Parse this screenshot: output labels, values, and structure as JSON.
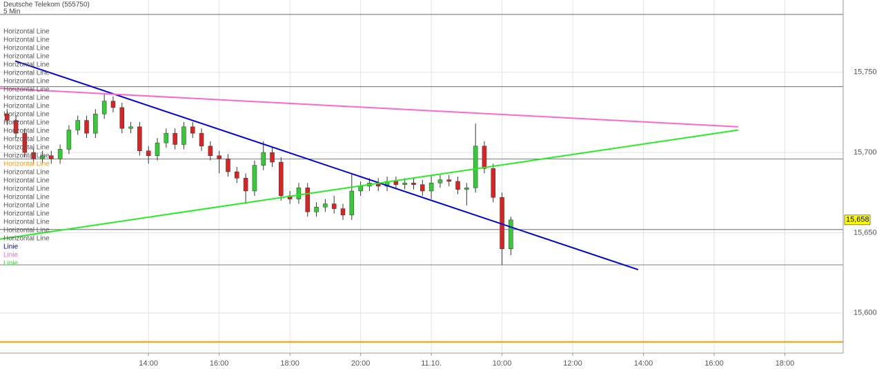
{
  "chart_data": {
    "type": "candlestick",
    "title": "Deutsche Telekom (555750)",
    "subtitle": "5 Min",
    "xlim": [
      9.8,
      33.65
    ],
    "xticks": [
      {
        "value": 14,
        "label": "14:00"
      },
      {
        "value": 16,
        "label": "16:00"
      },
      {
        "value": 18,
        "label": "18:00"
      },
      {
        "value": 20,
        "label": "20:00"
      },
      {
        "value": 22,
        "label": "11.10."
      },
      {
        "value": 24,
        "label": "10:00"
      },
      {
        "value": 26,
        "label": "12:00"
      },
      {
        "value": 28,
        "label": "14:00"
      },
      {
        "value": 30,
        "label": "16:00"
      },
      {
        "value": 32,
        "label": "18:00"
      }
    ],
    "ylim": [
      15575,
      15795
    ],
    "yticks": [
      {
        "value": 15600,
        "label": "15,600"
      },
      {
        "value": 15650,
        "label": "15,650"
      },
      {
        "value": 15700,
        "label": "15,700"
      },
      {
        "value": 15750,
        "label": "15,750"
      }
    ],
    "grid": true,
    "up_color": "#33cc33",
    "down_color": "#dd2222",
    "candles": {
      "x": [
        10,
        10.25,
        10.5,
        10.75,
        11,
        11.25,
        11.5,
        11.75,
        12,
        12.25,
        12.5,
        12.75,
        13,
        13.25,
        13.5,
        13.75,
        14,
        14.25,
        14.5,
        14.75,
        15,
        15.25,
        15.5,
        15.75,
        16,
        16.25,
        16.5,
        16.75,
        17,
        17.25,
        17.5,
        17.75,
        18,
        18.25,
        18.5,
        18.75,
        19,
        19.25,
        19.5,
        19.75,
        20,
        20.25,
        20.5,
        20.75,
        21,
        21.25,
        21.5,
        21.75,
        22,
        22.25,
        22.5,
        22.75,
        23,
        23.25,
        23.5,
        23.75,
        24,
        24.25
      ],
      "open": [
        15724,
        15720,
        15712,
        15700,
        15696,
        15698,
        15696,
        15702,
        15714,
        15720,
        15712,
        15724,
        15732,
        15728,
        15715,
        15716,
        15701,
        15698,
        15706,
        15712,
        15705,
        15716,
        15712,
        15704,
        15698,
        15696,
        15688,
        15684,
        15676,
        15692,
        15700,
        15694,
        15673,
        15671,
        15678,
        15663,
        15666,
        15668,
        15665,
        15661,
        15676,
        15679,
        15681,
        15679,
        15682,
        15680,
        15681,
        15680,
        15676,
        15681,
        15683,
        15682,
        15677,
        15678,
        15704,
        15690,
        15672,
        15640
      ],
      "high": [
        15727,
        15723,
        15715,
        15703,
        15701,
        15701,
        15705,
        15717,
        15723,
        15723,
        15727,
        15737,
        15735,
        15731,
        15719,
        15719,
        15704,
        15709,
        15715,
        15715,
        15719,
        15719,
        15715,
        15707,
        15701,
        15699,
        15691,
        15687,
        15695,
        15707,
        15703,
        15697,
        15676,
        15681,
        15681,
        15669,
        15671,
        15673,
        15668,
        15687,
        15682,
        15684,
        15684,
        15685,
        15685,
        15684,
        15684,
        15683,
        15686,
        15686,
        15686,
        15685,
        15681,
        15718,
        15707,
        15693,
        15675,
        15660
      ],
      "low": [
        15717,
        15709,
        15697,
        15693,
        15693,
        15693,
        15693,
        15699,
        15711,
        15709,
        15709,
        15721,
        15725,
        15712,
        15712,
        15698,
        15693,
        15695,
        15703,
        15702,
        15702,
        15709,
        15701,
        15695,
        15687,
        15685,
        15681,
        15668,
        15673,
        15689,
        15691,
        15670,
        15668,
        15668,
        15660,
        15660,
        15663,
        15662,
        15658,
        15658,
        15673,
        15676,
        15676,
        15676,
        15677,
        15677,
        15677,
        15673,
        15671,
        15678,
        15679,
        15674,
        15667,
        15675,
        15687,
        15669,
        15630,
        15636
      ],
      "close": [
        15720,
        15712,
        15700,
        15696,
        15698,
        15696,
        15702,
        15714,
        15720,
        15712,
        15724,
        15732,
        15728,
        15715,
        15716,
        15701,
        15698,
        15706,
        15712,
        15705,
        15716,
        15712,
        15704,
        15698,
        15696,
        15688,
        15684,
        15676,
        15692,
        15700,
        15694,
        15673,
        15671,
        15678,
        15663,
        15666,
        15668,
        15665,
        15661,
        15676,
        15679,
        15681,
        15679,
        15682,
        15680,
        15681,
        15680,
        15676,
        15681,
        15683,
        15682,
        15677,
        15678,
        15704,
        15690,
        15672,
        15640,
        15658
      ]
    },
    "lines": [
      {
        "name": "Linie",
        "color": "#0000dd",
        "x": [
          10.23,
          27.85
        ],
        "values": [
          15757,
          15627
        ]
      },
      {
        "name": "Linie",
        "color": "#ff66cc",
        "x": [
          9.8,
          30.68
        ],
        "values": [
          15740,
          15716
        ]
      },
      {
        "name": "Linie",
        "color": "#22ee22",
        "x": [
          9.8,
          30.68
        ],
        "values": [
          15646,
          15714
        ]
      }
    ],
    "levels": [
      {
        "value": 15786,
        "color": "#555555"
      },
      {
        "value": 15741,
        "color": "#555555"
      },
      {
        "value": 15696,
        "color": "#555555"
      },
      {
        "value": 15652,
        "color": "#555555"
      },
      {
        "value": 15630,
        "color": "#555555"
      },
      {
        "value": 15582,
        "color": "#ff9900"
      }
    ],
    "legend": [
      {
        "name": "Horizontal Line",
        "color": "#555555"
      },
      {
        "name": "Horizontal Line",
        "color": "#555555"
      },
      {
        "name": "Horizontal Line",
        "color": "#555555"
      },
      {
        "name": "Horizontal Line",
        "color": "#555555"
      },
      {
        "name": "Horizontal Line",
        "color": "#555555"
      },
      {
        "name": "Horizontal Line",
        "color": "#555555"
      },
      {
        "name": "Horizontal Line",
        "color": "#555555"
      },
      {
        "name": "Horizontal Line",
        "color": "#555555"
      },
      {
        "name": "Horizontal Line",
        "color": "#555555"
      },
      {
        "name": "Horizontal Line",
        "color": "#555555"
      },
      {
        "name": "Horizontal Line",
        "color": "#555555"
      },
      {
        "name": "Horizontal Line",
        "color": "#555555"
      },
      {
        "name": "Horizontal Line",
        "color": "#555555"
      },
      {
        "name": "Horizontal Line",
        "color": "#555555"
      },
      {
        "name": "Horizontal Line",
        "color": "#555555"
      },
      {
        "name": "Horizontal Line",
        "color": "#555555"
      },
      {
        "name": "Horizontal Line",
        "color": "#ff9900"
      },
      {
        "name": "Horizontal Line",
        "color": "#555555"
      },
      {
        "name": "Horizontal Line",
        "color": "#555555"
      },
      {
        "name": "Horizontal Line",
        "color": "#555555"
      },
      {
        "name": "Horizontal Line",
        "color": "#555555"
      },
      {
        "name": "Horizontal Line",
        "color": "#555555"
      },
      {
        "name": "Horizontal Line",
        "color": "#555555"
      },
      {
        "name": "Horizontal Line",
        "color": "#555555"
      },
      {
        "name": "Horizontal Line",
        "color": "#555555"
      },
      {
        "name": "Horizontal Line",
        "color": "#555555"
      },
      {
        "name": "Linie",
        "color": "#0000dd"
      },
      {
        "name": "Linie",
        "color": "#ff66cc"
      },
      {
        "name": "Linie",
        "color": "#22ee22"
      }
    ],
    "last_price": {
      "value": 15658,
      "label": "15,658",
      "color": "#ffff00"
    }
  }
}
